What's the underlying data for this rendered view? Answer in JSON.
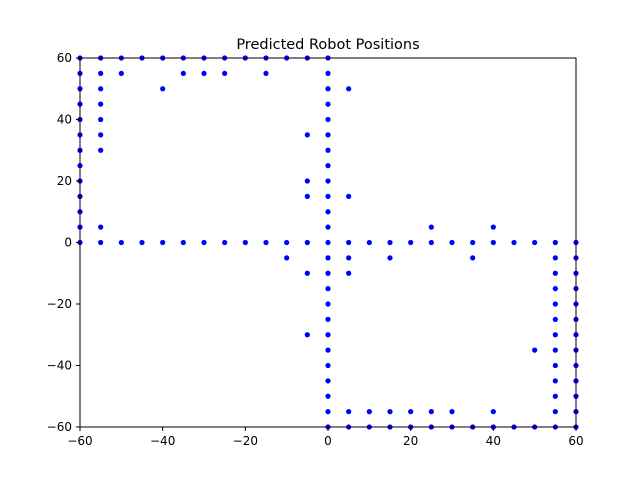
{
  "chart_data": {
    "type": "scatter",
    "title": "Predicted Robot Positions",
    "xlabel": "",
    "ylabel": "",
    "xlim": [
      -60,
      60
    ],
    "ylim": [
      -60,
      60
    ],
    "xticks": [
      -60,
      -40,
      -20,
      0,
      20,
      40,
      60
    ],
    "yticks": [
      -60,
      -40,
      -20,
      0,
      20,
      40,
      60
    ],
    "xtick_labels": [
      "−60",
      "−40",
      "−20",
      "0",
      "20",
      "40",
      "60"
    ],
    "ytick_labels": [
      "−60",
      "−40",
      "−20",
      "0",
      "20",
      "40",
      "60"
    ],
    "grid": false,
    "marker_color": "#0000ff",
    "points": [
      [
        -60,
        60
      ],
      [
        -55,
        60
      ],
      [
        -50,
        60
      ],
      [
        -45,
        60
      ],
      [
        -40,
        60
      ],
      [
        -35,
        60
      ],
      [
        -30,
        60
      ],
      [
        -25,
        60
      ],
      [
        -20,
        60
      ],
      [
        -15,
        60
      ],
      [
        -10,
        60
      ],
      [
        -5,
        60
      ],
      [
        0,
        60
      ],
      [
        -55,
        55
      ],
      [
        -50,
        55
      ],
      [
        -35,
        55
      ],
      [
        -30,
        55
      ],
      [
        -25,
        55
      ],
      [
        -15,
        55
      ],
      [
        0,
        55
      ],
      [
        -55,
        50
      ],
      [
        -40,
        50
      ],
      [
        0,
        50
      ],
      [
        5,
        50
      ],
      [
        -55,
        45
      ],
      [
        0,
        45
      ],
      [
        -55,
        40
      ],
      [
        0,
        40
      ],
      [
        -55,
        35
      ],
      [
        -5,
        35
      ],
      [
        0,
        35
      ],
      [
        -55,
        30
      ],
      [
        0,
        30
      ],
      [
        0,
        25
      ],
      [
        -5,
        20
      ],
      [
        0,
        20
      ],
      [
        -5,
        15
      ],
      [
        0,
        15
      ],
      [
        5,
        15
      ],
      [
        0,
        10
      ],
      [
        0,
        5
      ],
      [
        -55,
        5
      ],
      [
        -60,
        55
      ],
      [
        -60,
        50
      ],
      [
        -60,
        45
      ],
      [
        -60,
        40
      ],
      [
        -60,
        35
      ],
      [
        -60,
        30
      ],
      [
        -60,
        25
      ],
      [
        -60,
        20
      ],
      [
        -60,
        15
      ],
      [
        -60,
        10
      ],
      [
        -60,
        5
      ],
      [
        -60,
        0
      ],
      [
        -55,
        0
      ],
      [
        -50,
        0
      ],
      [
        -45,
        0
      ],
      [
        -40,
        0
      ],
      [
        -35,
        0
      ],
      [
        -30,
        0
      ],
      [
        -25,
        0
      ],
      [
        -20,
        0
      ],
      [
        -15,
        0
      ],
      [
        -10,
        0
      ],
      [
        -5,
        0
      ],
      [
        0,
        0
      ],
      [
        5,
        0
      ],
      [
        10,
        0
      ],
      [
        15,
        0
      ],
      [
        20,
        0
      ],
      [
        25,
        0
      ],
      [
        30,
        0
      ],
      [
        35,
        0
      ],
      [
        40,
        0
      ],
      [
        45,
        0
      ],
      [
        50,
        0
      ],
      [
        55,
        0
      ],
      [
        60,
        0
      ],
      [
        25,
        5
      ],
      [
        40,
        5
      ],
      [
        -10,
        -5
      ],
      [
        0,
        -5
      ],
      [
        5,
        -5
      ],
      [
        15,
        -5
      ],
      [
        35,
        -5
      ],
      [
        55,
        -5
      ],
      [
        60,
        -5
      ],
      [
        -5,
        -10
      ],
      [
        0,
        -10
      ],
      [
        5,
        -10
      ],
      [
        55,
        -10
      ],
      [
        60,
        -10
      ],
      [
        0,
        -15
      ],
      [
        55,
        -15
      ],
      [
        60,
        -15
      ],
      [
        0,
        -20
      ],
      [
        55,
        -20
      ],
      [
        60,
        -20
      ],
      [
        0,
        -25
      ],
      [
        55,
        -25
      ],
      [
        60,
        -25
      ],
      [
        -5,
        -30
      ],
      [
        0,
        -30
      ],
      [
        55,
        -30
      ],
      [
        60,
        -30
      ],
      [
        0,
        -35
      ],
      [
        50,
        -35
      ],
      [
        55,
        -35
      ],
      [
        60,
        -35
      ],
      [
        0,
        -40
      ],
      [
        55,
        -40
      ],
      [
        60,
        -40
      ],
      [
        0,
        -45
      ],
      [
        55,
        -45
      ],
      [
        60,
        -45
      ],
      [
        0,
        -50
      ],
      [
        55,
        -50
      ],
      [
        60,
        -50
      ],
      [
        0,
        -55
      ],
      [
        5,
        -55
      ],
      [
        10,
        -55
      ],
      [
        15,
        -55
      ],
      [
        20,
        -55
      ],
      [
        25,
        -55
      ],
      [
        30,
        -55
      ],
      [
        40,
        -55
      ],
      [
        55,
        -55
      ],
      [
        60,
        -55
      ],
      [
        0,
        -60
      ],
      [
        5,
        -60
      ],
      [
        10,
        -60
      ],
      [
        15,
        -60
      ],
      [
        20,
        -60
      ],
      [
        25,
        -60
      ],
      [
        30,
        -60
      ],
      [
        35,
        -60
      ],
      [
        40,
        -60
      ],
      [
        45,
        -60
      ],
      [
        50,
        -60
      ],
      [
        55,
        -60
      ],
      [
        60,
        -60
      ]
    ]
  }
}
